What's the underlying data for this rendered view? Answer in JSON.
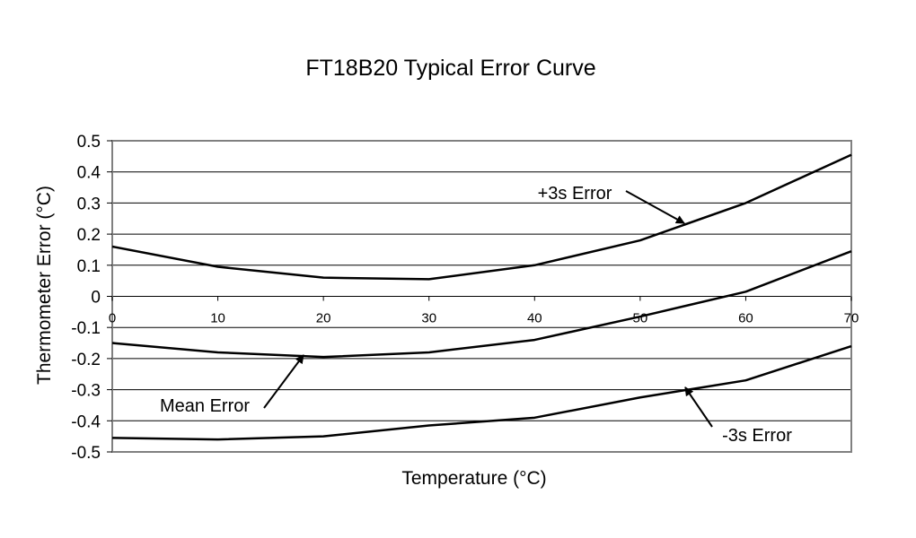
{
  "chart_data": {
    "type": "line",
    "title": "FT18B20 Typical Error Curve",
    "xlabel": "Temperature (°C)",
    "ylabel": "Thermometer Error (°C)",
    "x": [
      0,
      10,
      20,
      30,
      40,
      50,
      60,
      70
    ],
    "xticks": [
      "0",
      "10",
      "20",
      "30",
      "40",
      "50",
      "60",
      "70"
    ],
    "yticks": [
      "0.5",
      "0.4",
      "0.3",
      "0.2",
      "0.1",
      "0",
      "-0.1",
      "-0.2",
      "-0.3",
      "-0.4",
      "-0.5"
    ],
    "xlim": [
      0,
      70
    ],
    "ylim": [
      -0.5,
      0.5
    ],
    "grid": "horizontal",
    "series": [
      {
        "name": "+3s Error",
        "values": [
          0.16,
          0.095,
          0.06,
          0.055,
          0.1,
          0.18,
          0.3,
          0.455
        ]
      },
      {
        "name": "Mean Error",
        "values": [
          -0.15,
          -0.18,
          -0.195,
          -0.18,
          -0.14,
          -0.065,
          0.015,
          0.145
        ]
      },
      {
        "name": "-3s Error",
        "values": [
          -0.455,
          -0.46,
          -0.45,
          -0.415,
          -0.39,
          -0.325,
          -0.27,
          -0.16
        ]
      }
    ],
    "annotations": [
      {
        "text": "+3s Error",
        "series": 0
      },
      {
        "text": "Mean Error",
        "series": 1
      },
      {
        "text": "-3s Error",
        "series": 2
      }
    ]
  }
}
